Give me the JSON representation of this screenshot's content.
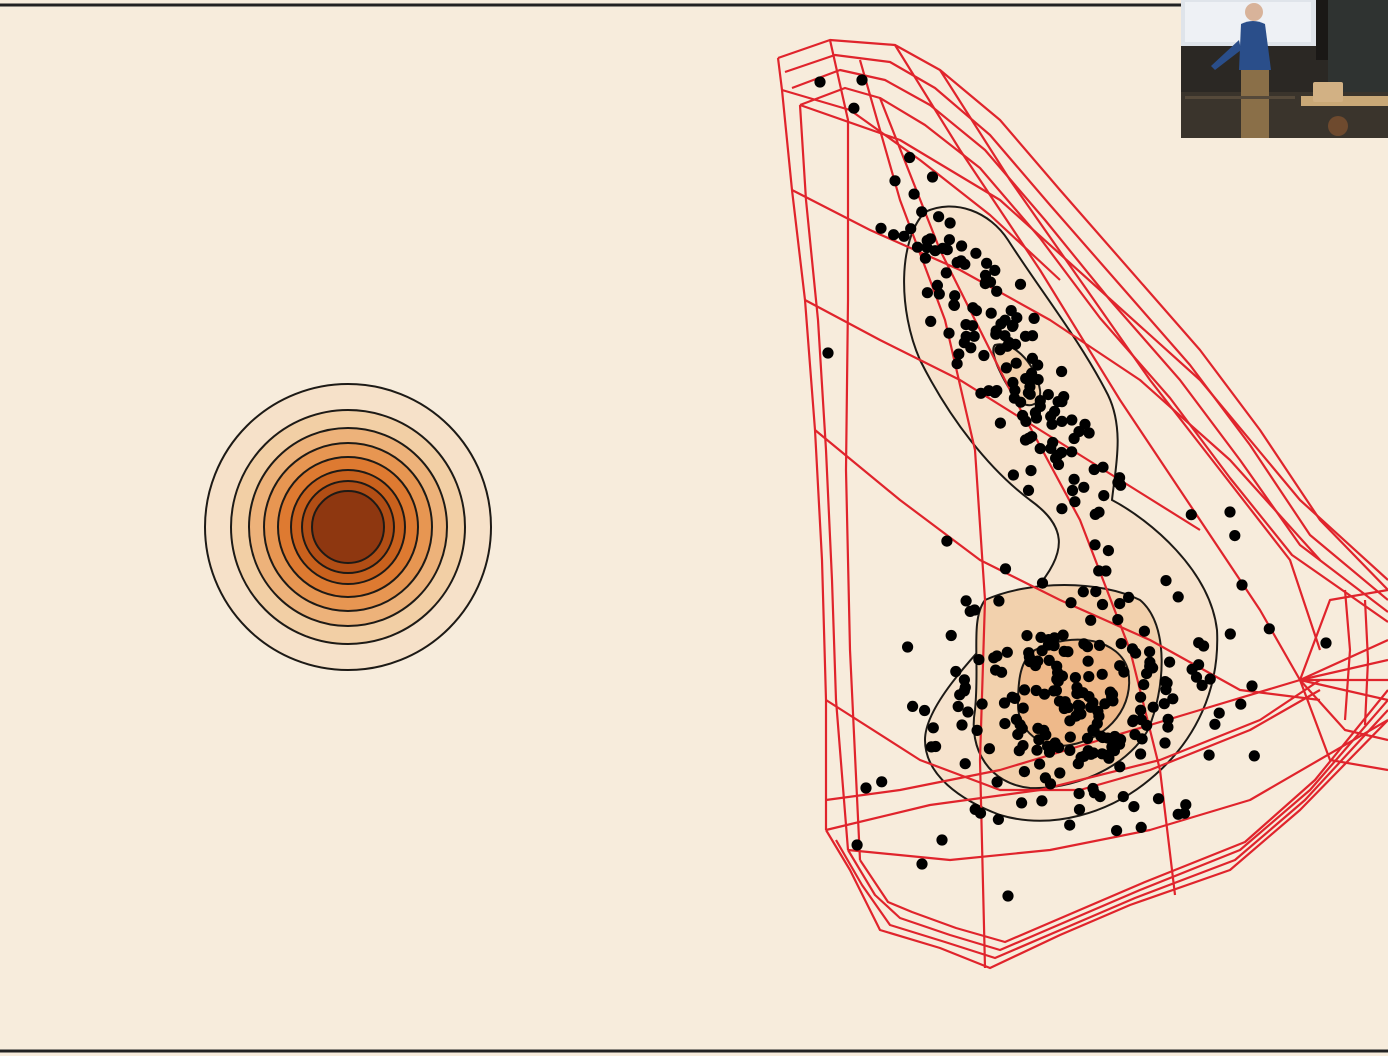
{
  "slide": {
    "background": "#f7ecdc",
    "frame_line_color": "#222222"
  },
  "base_density": {
    "shape": "concentric-circles",
    "levels": 8,
    "fill_colors": [
      "#f6e1c9",
      "#f2cfa5",
      "#edb27a",
      "#e79652",
      "#de7a31",
      "#c9611d",
      "#b24e15",
      "#8e3710"
    ],
    "contour_color": "#1d1a16"
  },
  "transformed_density": {
    "mesh_color": "#e0242c",
    "point_color": "#000000",
    "point_count": 380,
    "contour_fill_colors": [
      "#f6e3cd",
      "#f2d1ad",
      "#eeb98a",
      "#e9a26b"
    ],
    "contour_color": "#1d1a16"
  },
  "video_overlay": {
    "content": "lecturer-camera-feed"
  }
}
